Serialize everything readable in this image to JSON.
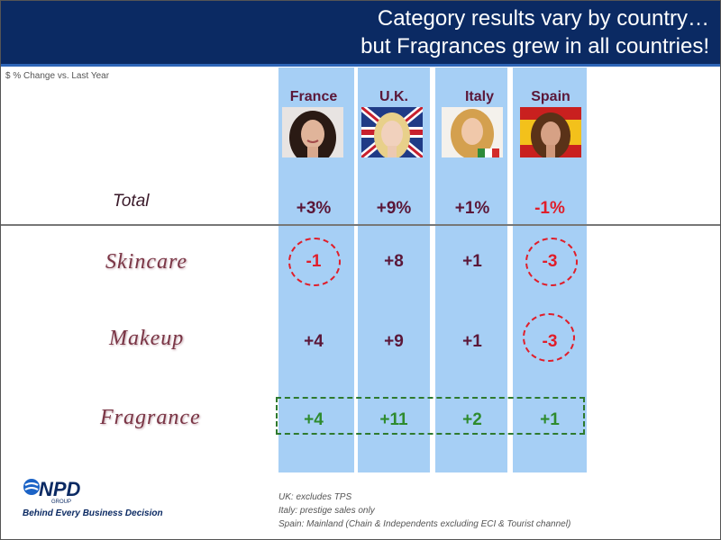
{
  "header": {
    "title_line1": "Category results vary by country…",
    "title_line2": "but Fragrances grew in all countries!"
  },
  "subtitle": "$ % Change vs. Last Year",
  "countries": [
    {
      "name": "France",
      "total": "+3%",
      "skincare": "-1",
      "makeup": "+4",
      "fragrance": "+4"
    },
    {
      "name": "U.K.",
      "total": "+9%",
      "skincare": "+8",
      "makeup": "+9",
      "fragrance": "+11"
    },
    {
      "name": "Italy",
      "total": "+1%",
      "skincare": "+1",
      "makeup": "+1",
      "fragrance": "+2"
    },
    {
      "name": "Spain",
      "total": "-1%",
      "skincare": "-3",
      "makeup": "-3",
      "fragrance": "+1"
    }
  ],
  "rows": {
    "total": "Total",
    "skincare": "Skincare",
    "makeup": "Makeup",
    "fragrance": "Fragrance"
  },
  "logo": {
    "name": "NPD",
    "group": "GROUP",
    "tagline": "Behind Every Business Decision"
  },
  "notes": [
    "UK: excludes TPS",
    "Italy:  prestige sales only",
    "Spain: Mainland (Chain & Independents excluding ECI & Tourist  channel)"
  ],
  "colors": {
    "header": "#0b2a63",
    "column": "#a6cff5",
    "value": "#5b1738",
    "negative": "#e01e2a",
    "fragrance": "#2e8b2e"
  }
}
